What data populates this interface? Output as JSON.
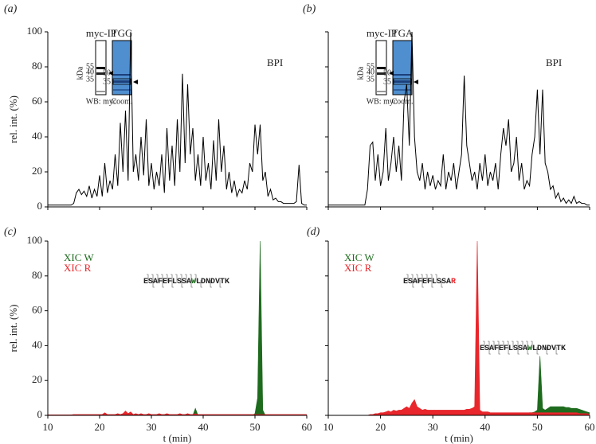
{
  "chart_data": [
    {
      "type": "line",
      "panel": "(a)",
      "ylabel": "rel. int. (%)",
      "x": [
        10,
        10.5,
        11,
        11.5,
        12,
        12.5,
        13,
        13.5,
        14,
        14.5,
        15,
        15.5,
        16,
        16.5,
        17,
        17.5,
        18,
        18.5,
        19,
        19.5,
        20,
        20.5,
        21,
        21.5,
        22,
        22.5,
        23,
        23.5,
        24,
        24.5,
        25,
        25.5,
        26,
        26.5,
        27,
        27.5,
        28,
        28.5,
        29,
        29.5,
        30,
        30.5,
        31,
        31.5,
        32,
        32.5,
        33,
        33.5,
        34,
        34.5,
        35,
        35.5,
        36,
        36.5,
        37,
        37.5,
        38,
        38.5,
        39,
        39.5,
        40,
        40.5,
        41,
        41.5,
        42,
        42.5,
        43,
        43.5,
        44,
        44.5,
        45,
        45.5,
        46,
        46.5,
        47,
        47.5,
        48,
        48.5,
        49,
        49.5,
        50,
        50.5,
        51,
        51.5,
        52,
        52.5,
        53,
        53.5,
        54,
        54.5,
        55,
        55.5,
        56,
        56.5,
        57,
        57.5,
        58,
        58.5,
        59,
        59.5,
        60
      ],
      "series": [
        {
          "color": "#000000",
          "values": [
            1,
            1,
            1,
            1,
            1,
            1,
            1,
            1,
            1,
            1,
            2,
            8,
            10,
            7,
            9,
            6,
            12,
            5,
            10,
            6,
            18,
            6,
            25,
            8,
            15,
            10,
            30,
            12,
            48,
            20,
            55,
            15,
            100,
            20,
            30,
            15,
            40,
            18,
            50,
            12,
            25,
            10,
            20,
            12,
            30,
            8,
            45,
            15,
            35,
            12,
            50,
            20,
            76,
            25,
            70,
            30,
            45,
            15,
            30,
            12,
            40,
            15,
            25,
            10,
            38,
            15,
            50,
            20,
            35,
            10,
            20,
            8,
            15,
            6,
            10,
            8,
            15,
            10,
            25,
            20,
            47,
            30,
            47,
            15,
            20,
            6,
            10,
            4,
            5,
            3,
            3,
            2,
            2,
            2,
            2,
            2,
            3,
            24,
            2,
            1,
            1
          ]
        }
      ],
      "annotations": [
        {
          "text": "BPI"
        }
      ],
      "inset": {
        "left_title": "myc-IP",
        "right_title": "TGG",
        "left_markers": [
          "55",
          "40",
          "35"
        ],
        "unit": "kDa",
        "right_markers": [
          "50",
          "35"
        ],
        "left_caption": "WB: myc",
        "right_caption": "Coom."
      },
      "xlim": [
        10,
        60
      ],
      "ylim": [
        0,
        100
      ],
      "xticks": [
        10,
        20,
        30,
        40,
        50,
        60
      ],
      "yticks": [
        0,
        20,
        40,
        60,
        80,
        100
      ]
    },
    {
      "type": "line",
      "panel": "(b)",
      "x": [
        10,
        10.5,
        11,
        11.5,
        12,
        12.5,
        13,
        13.5,
        14,
        14.5,
        15,
        15.5,
        16,
        16.5,
        17,
        17.5,
        18,
        18.5,
        19,
        19.5,
        20,
        20.5,
        21,
        21.5,
        22,
        22.5,
        23,
        23.5,
        24,
        24.5,
        25,
        25.5,
        26,
        26.5,
        27,
        27.5,
        28,
        28.5,
        29,
        29.5,
        30,
        30.5,
        31,
        31.5,
        32,
        32.5,
        33,
        33.5,
        34,
        34.5,
        35,
        35.5,
        36,
        36.5,
        37,
        37.5,
        38,
        38.5,
        39,
        39.5,
        40,
        40.5,
        41,
        41.5,
        42,
        42.5,
        43,
        43.5,
        44,
        44.5,
        45,
        45.5,
        46,
        46.5,
        47,
        47.5,
        48,
        48.5,
        49,
        49.5,
        50,
        50.5,
        51,
        51.5,
        52,
        52.5,
        53,
        53.5,
        54,
        54.5,
        55,
        55.5,
        56,
        56.5,
        57,
        57.5,
        58,
        58.5,
        59,
        59.5,
        60
      ],
      "series": [
        {
          "color": "#000000",
          "values": [
            1,
            1,
            1,
            1,
            1,
            1,
            1,
            1,
            1,
            1,
            1,
            1,
            1,
            1,
            1,
            10,
            35,
            37,
            15,
            30,
            12,
            20,
            45,
            15,
            25,
            40,
            20,
            35,
            15,
            60,
            70,
            35,
            100,
            40,
            20,
            15,
            25,
            10,
            20,
            12,
            18,
            10,
            15,
            12,
            30,
            10,
            20,
            15,
            25,
            10,
            20,
            30,
            75,
            35,
            25,
            15,
            20,
            10,
            25,
            15,
            30,
            12,
            20,
            15,
            25,
            10,
            30,
            45,
            35,
            50,
            20,
            25,
            40,
            15,
            25,
            10,
            15,
            12,
            30,
            40,
            67,
            30,
            67,
            25,
            20,
            10,
            12,
            5,
            8,
            3,
            5,
            2,
            4,
            2,
            6,
            2,
            3,
            2,
            2,
            1,
            1
          ]
        }
      ],
      "annotations": [
        {
          "text": "BPI"
        }
      ],
      "inset": {
        "left_title": "myc-IP",
        "right_title": "TGA",
        "left_markers": [
          "55",
          "40",
          "35"
        ],
        "unit": "kDa",
        "right_markers": [
          "50",
          "35"
        ],
        "left_caption": "WB: myc",
        "right_caption": "Coom."
      },
      "xlim": [
        10,
        60
      ],
      "ylim": [
        0,
        100
      ],
      "xticks": [
        10,
        20,
        30,
        40,
        50,
        60
      ],
      "yticks": [
        0,
        20,
        40,
        60,
        80,
        100
      ]
    },
    {
      "type": "area",
      "panel": "(c)",
      "ylabel": "rel. int. (%)",
      "xlabel": "t (min)",
      "x": [
        10,
        10.5,
        11,
        11.5,
        12,
        12.5,
        13,
        13.5,
        14,
        14.5,
        15,
        15.5,
        16,
        16.5,
        17,
        17.5,
        18,
        18.5,
        19,
        19.5,
        20,
        20.5,
        21,
        21.5,
        22,
        22.5,
        23,
        23.5,
        24,
        24.5,
        25,
        25.5,
        26,
        26.5,
        27,
        27.5,
        28,
        28.5,
        29,
        29.5,
        30,
        30.5,
        31,
        31.5,
        32,
        32.5,
        33,
        33.5,
        34,
        34.5,
        35,
        35.5,
        36,
        36.5,
        37,
        37.5,
        38,
        38.5,
        39,
        39.5,
        40,
        40.5,
        41,
        41.5,
        42,
        42.5,
        43,
        43.5,
        44,
        44.5,
        45,
        45.5,
        46,
        46.5,
        47,
        47.5,
        48,
        48.5,
        49,
        49.5,
        50,
        50.5,
        51,
        51.5,
        52,
        52.5,
        53,
        53.5,
        54,
        54.5,
        55,
        55.5,
        56,
        56.5,
        57,
        57.5,
        58,
        58.5,
        59,
        59.5,
        60
      ],
      "series": [
        {
          "name": "XIC W",
          "color": "#1e6b1e",
          "values": [
            0,
            0,
            0,
            0,
            0,
            0,
            0,
            0,
            0,
            0,
            0,
            0,
            0,
            0,
            0,
            0,
            0,
            0,
            0,
            0,
            0,
            0,
            0,
            0,
            0,
            0,
            0,
            0,
            0,
            0,
            0,
            0,
            0,
            0,
            0,
            0,
            0,
            0,
            0,
            0,
            0,
            0,
            0,
            0,
            0,
            0,
            0,
            0,
            0,
            0,
            0,
            0,
            0,
            0,
            0,
            0,
            0,
            4,
            0,
            0,
            0,
            0,
            0,
            0,
            0,
            0,
            0,
            0,
            0,
            0,
            0,
            0,
            0,
            0,
            0,
            0,
            0,
            0,
            0,
            0,
            1,
            10,
            100,
            3,
            0,
            0,
            0,
            0,
            0,
            0,
            0,
            0,
            0,
            0,
            0,
            0,
            0,
            0,
            0,
            0,
            0
          ]
        },
        {
          "name": "XIC R",
          "color": "#e8262b",
          "values": [
            0.3,
            0.3,
            0.3,
            0.3,
            0.3,
            0.3,
            0.3,
            0.3,
            0.3,
            0.3,
            0.5,
            0.5,
            0.5,
            0.5,
            0.5,
            0.5,
            0.5,
            0.5,
            0.5,
            0.5,
            0.5,
            0.5,
            1.5,
            0.5,
            0.5,
            0.5,
            0.5,
            1,
            0.5,
            1,
            2.5,
            1,
            2,
            0.5,
            1,
            0.5,
            1,
            0.5,
            0.5,
            1,
            0.5,
            0.5,
            0.5,
            1,
            0.5,
            0.5,
            1,
            0.5,
            0.5,
            0.5,
            0.5,
            1,
            0.5,
            0.5,
            1,
            0.5,
            0.5,
            1,
            0.5,
            0.5,
            0.5,
            0.5,
            0.5,
            0.5,
            0.5,
            0.5,
            0.5,
            0.5,
            0.5,
            0.5,
            0.5,
            0.5,
            0.5,
            0.5,
            0.5,
            0.5,
            0.5,
            0.5,
            0.5,
            0.5,
            0.5,
            0.5,
            0.5,
            0.5,
            0.5,
            0.5,
            0.5,
            0.5,
            0.5,
            0.5,
            0.5,
            0.5,
            0.5,
            0.5,
            0.5,
            0.5,
            0.5,
            0.5,
            0.5,
            0.5,
            0.5
          ]
        }
      ],
      "annotations": [
        {
          "prefix": "ESAFEFLSSA",
          "residue": "W",
          "suffix": "LDNDVTK",
          "residue_color": "#1e6b1e"
        }
      ],
      "xlim": [
        10,
        60
      ],
      "ylim": [
        0,
        100
      ],
      "xticks": [
        10,
        20,
        30,
        40,
        50,
        60
      ],
      "yticks": [
        0,
        20,
        40,
        60,
        80,
        100
      ]
    },
    {
      "type": "area",
      "panel": "(d)",
      "xlabel": "t (min)",
      "x": [
        10,
        10.5,
        11,
        11.5,
        12,
        12.5,
        13,
        13.5,
        14,
        14.5,
        15,
        15.5,
        16,
        16.5,
        17,
        17.5,
        18,
        18.5,
        19,
        19.5,
        20,
        20.5,
        21,
        21.5,
        22,
        22.5,
        23,
        23.5,
        24,
        24.5,
        25,
        25.5,
        26,
        26.5,
        27,
        27.5,
        28,
        28.5,
        29,
        29.5,
        30,
        30.5,
        31,
        31.5,
        32,
        32.5,
        33,
        33.5,
        34,
        34.5,
        35,
        35.5,
        36,
        36.5,
        37,
        37.5,
        38,
        38.5,
        39,
        39.5,
        40,
        40.5,
        41,
        41.5,
        42,
        42.5,
        43,
        43.5,
        44,
        44.5,
        45,
        45.5,
        46,
        46.5,
        47,
        47.5,
        48,
        48.5,
        49,
        49.5,
        50,
        50.5,
        51,
        51.5,
        52,
        52.5,
        53,
        53.5,
        54,
        54.5,
        55,
        55.5,
        56,
        56.5,
        57,
        57.5,
        58,
        58.5,
        59,
        59.5,
        60
      ],
      "series": [
        {
          "name": "XIC W",
          "color": "#1e6b1e",
          "values": [
            0,
            0,
            0,
            0,
            0,
            0,
            0,
            0,
            0,
            0,
            0,
            0,
            0,
            0,
            0,
            0,
            0,
            0,
            0,
            0,
            0.5,
            0.5,
            0.5,
            0.5,
            0.5,
            0.5,
            0.5,
            0.5,
            0.5,
            0.5,
            0.5,
            0.5,
            0.5,
            0.5,
            0.5,
            0.5,
            0.5,
            0.5,
            0.5,
            0.5,
            0.5,
            0.5,
            0.5,
            0.5,
            0.5,
            0.5,
            0.5,
            0.5,
            0.5,
            0.5,
            0.5,
            0.5,
            0.5,
            0.5,
            0.5,
            0.5,
            0.5,
            0.5,
            0.5,
            0.5,
            0.5,
            0.5,
            0.5,
            0.5,
            0.5,
            0.5,
            0.5,
            0.5,
            0.5,
            0.5,
            1,
            1,
            1,
            1,
            1,
            1,
            1,
            1.5,
            1.5,
            2,
            3,
            34,
            4,
            3,
            4,
            5,
            5,
            5,
            5,
            5,
            5,
            4.5,
            4.5,
            4,
            4,
            4,
            3.5,
            3,
            2.5,
            2,
            1.5
          ]
        },
        {
          "name": "XIC R",
          "color": "#e8262b",
          "values": [
            0,
            0,
            0,
            0,
            0,
            0,
            0,
            0,
            0,
            0,
            0,
            0,
            0,
            0,
            0,
            0,
            0.5,
            0.5,
            1,
            1,
            1.5,
            1.5,
            2,
            2.5,
            2,
            3,
            2.5,
            3,
            3,
            4,
            5,
            4,
            7,
            9,
            5,
            4,
            3,
            3.5,
            3,
            3,
            3,
            3,
            3,
            3,
            3,
            3,
            3,
            3,
            3,
            3,
            3,
            3,
            3,
            3.5,
            3.5,
            4,
            5,
            100,
            3,
            2,
            2,
            2,
            1.5,
            1.5,
            1.5,
            1.5,
            1.5,
            1.5,
            1.5,
            1.5,
            1.5,
            1.5,
            1.5,
            1.5,
            1.5,
            1.5,
            1.5,
            1.5,
            1.5,
            1.5,
            1.5,
            1.5,
            1.5,
            1.5,
            1.5,
            1.5,
            1.5,
            1.5,
            1.5,
            1.5,
            1.5,
            1.5,
            1.5,
            1.5,
            1.5,
            1.5,
            1,
            1,
            1,
            1,
            0.5
          ]
        }
      ],
      "annotations": [
        {
          "prefix": "ESAFEFLSSA",
          "residue": "R",
          "residue_color": "#e8262b"
        },
        {
          "prefix": "ESAFEFLSSA",
          "residue": "W",
          "suffix": "LDNDVTK",
          "residue_color": "#1e6b1e"
        }
      ],
      "xlim": [
        10,
        60
      ],
      "ylim": [
        0,
        100
      ],
      "xticks": [
        10,
        20,
        30,
        40,
        50,
        60
      ],
      "yticks": [
        0,
        20,
        40,
        60,
        80,
        100
      ]
    }
  ]
}
